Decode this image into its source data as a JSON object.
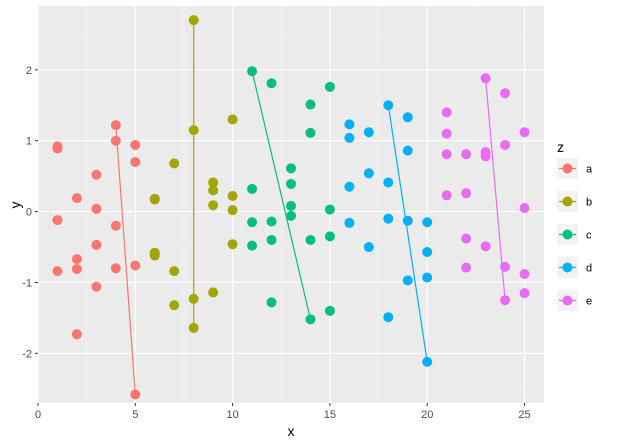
{
  "chart_data": {
    "type": "scatter",
    "title": "",
    "xlabel": "x",
    "ylabel": "y",
    "xlim": [
      0,
      26
    ],
    "ylim": [
      -2.7,
      2.9
    ],
    "x_ticks": [
      0,
      5,
      10,
      15,
      20,
      25
    ],
    "y_ticks": [
      -2,
      -1,
      0,
      1,
      2
    ],
    "grid": true,
    "legend": {
      "title": "z",
      "position": "right"
    },
    "series": [
      {
        "name": "a",
        "color": "#F8766D",
        "points": [
          [
            1,
            0.92
          ],
          [
            1,
            0.89
          ],
          [
            1,
            -0.12
          ],
          [
            1,
            -0.84
          ],
          [
            2,
            0.19
          ],
          [
            2,
            -0.67
          ],
          [
            2,
            -0.81
          ],
          [
            2,
            -1.73
          ],
          [
            3,
            0.52
          ],
          [
            3,
            0.04
          ],
          [
            3,
            -0.47
          ],
          [
            3,
            -1.06
          ],
          [
            4,
            1.22
          ],
          [
            4,
            1.0
          ],
          [
            4,
            -0.2
          ],
          [
            4,
            -0.8
          ],
          [
            5,
            0.94
          ],
          [
            5,
            0.7
          ],
          [
            5,
            -0.76
          ],
          [
            5,
            -2.58
          ]
        ],
        "segment": [
          [
            4,
            1.22
          ],
          [
            5,
            -2.58
          ]
        ]
      },
      {
        "name": "b",
        "color": "#A3A500",
        "points": [
          [
            6,
            0.18
          ],
          [
            6,
            0.17
          ],
          [
            6,
            -0.58
          ],
          [
            6,
            -0.62
          ],
          [
            7,
            0.68
          ],
          [
            7,
            -0.84
          ],
          [
            7,
            -1.32
          ],
          [
            8,
            2.7
          ],
          [
            8,
            1.15
          ],
          [
            8,
            -1.23
          ],
          [
            8,
            -1.64
          ],
          [
            9,
            0.41
          ],
          [
            9,
            0.3
          ],
          [
            9,
            0.09
          ],
          [
            9,
            -1.14
          ],
          [
            10,
            1.3
          ],
          [
            10,
            0.22
          ],
          [
            10,
            0.02
          ],
          [
            10,
            -0.46
          ]
        ],
        "segment": [
          [
            8,
            2.7
          ],
          [
            8,
            -1.64
          ]
        ]
      },
      {
        "name": "c",
        "color": "#00BF7D",
        "points": [
          [
            11,
            1.98
          ],
          [
            11,
            0.32
          ],
          [
            11,
            -0.15
          ],
          [
            11,
            -0.48
          ],
          [
            12,
            1.81
          ],
          [
            12,
            -0.14
          ],
          [
            12,
            -0.4
          ],
          [
            12,
            -1.28
          ],
          [
            13,
            0.61
          ],
          [
            13,
            0.39
          ],
          [
            13,
            0.08
          ],
          [
            13,
            -0.06
          ],
          [
            14,
            1.51
          ],
          [
            14,
            1.11
          ],
          [
            14,
            -0.4
          ],
          [
            14,
            -1.52
          ],
          [
            15,
            1.76
          ],
          [
            15,
            0.03
          ],
          [
            15,
            -0.35
          ],
          [
            15,
            -1.4
          ]
        ],
        "segment": [
          [
            11,
            1.98
          ],
          [
            14,
            -1.52
          ]
        ]
      },
      {
        "name": "d",
        "color": "#00B0F6",
        "points": [
          [
            16,
            1.23
          ],
          [
            16,
            1.04
          ],
          [
            16,
            0.35
          ],
          [
            16,
            -0.16
          ],
          [
            17,
            1.12
          ],
          [
            17,
            0.54
          ],
          [
            17,
            -0.5
          ],
          [
            18,
            1.5
          ],
          [
            18,
            0.41
          ],
          [
            18,
            -0.1
          ],
          [
            18,
            -1.49
          ],
          [
            19,
            1.33
          ],
          [
            19,
            0.86
          ],
          [
            19,
            -0.13
          ],
          [
            19,
            -0.97
          ],
          [
            20,
            -0.15
          ],
          [
            20,
            -0.57
          ],
          [
            20,
            -0.93
          ],
          [
            20,
            -2.12
          ]
        ],
        "segment": [
          [
            18,
            1.5
          ],
          [
            20,
            -2.12
          ]
        ]
      },
      {
        "name": "e",
        "color": "#E76BF3",
        "points": [
          [
            21,
            1.4
          ],
          [
            21,
            1.1
          ],
          [
            21,
            0.81
          ],
          [
            21,
            0.23
          ],
          [
            22,
            0.81
          ],
          [
            22,
            0.26
          ],
          [
            22,
            -0.38
          ],
          [
            22,
            -0.79
          ],
          [
            23,
            1.88
          ],
          [
            23,
            0.84
          ],
          [
            23,
            0.78
          ],
          [
            23,
            -0.49
          ],
          [
            24,
            1.67
          ],
          [
            24,
            0.94
          ],
          [
            24,
            -0.78
          ],
          [
            24,
            -1.25
          ],
          [
            25,
            1.12
          ],
          [
            25,
            0.05
          ],
          [
            25,
            -0.88
          ],
          [
            25,
            -1.15
          ]
        ],
        "segment": [
          [
            23,
            1.88
          ],
          [
            24,
            -1.25
          ]
        ]
      }
    ]
  },
  "colors": {
    "panel_background": "#EBEBEB",
    "grid_major": "#FFFFFF",
    "grid_minor": "#F5F5F5",
    "legend_key_background": "#F2F2F2"
  }
}
